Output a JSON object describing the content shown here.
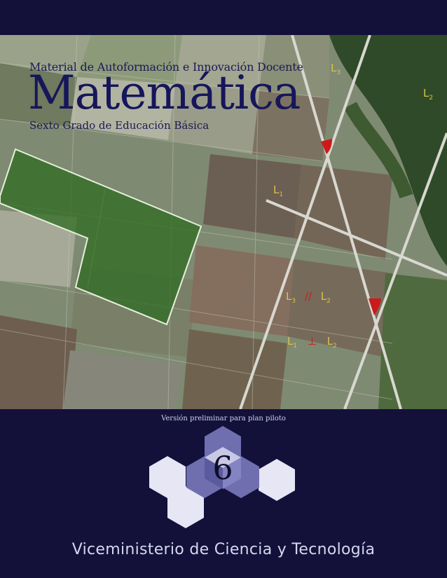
{
  "cover": {
    "series_title": "Material de Autoformación e Innovación Docente",
    "main_title": "Matemática",
    "grade": "Sexto Grado de Educación Básica",
    "version_note": "Versión preliminar para plan piloto",
    "grade_number": "6",
    "publisher": "Viceministerio de Ciencia y Tecnología"
  },
  "line_labels": {
    "l1": "L",
    "l1_sub": "1",
    "l2": "L",
    "l2_sub": "2",
    "l3": "L",
    "l3_sub": "3",
    "parallel_left": "L",
    "parallel_left_sub": "3",
    "parallel_symbol": "//",
    "parallel_right": "L",
    "parallel_right_sub": "2",
    "perp_left": "L",
    "perp_left_sub": "1",
    "perp_symbol": "⊥",
    "perp_right": "L",
    "perp_right_sub": "2"
  },
  "colors": {
    "navy": "#13113a",
    "title_blue": "#16165a",
    "hex_light": "#e6e6f5",
    "hex_medium": "#6f6fb0",
    "label_yellow": "#d9c24a",
    "angle_red": "#cc1a1a"
  }
}
